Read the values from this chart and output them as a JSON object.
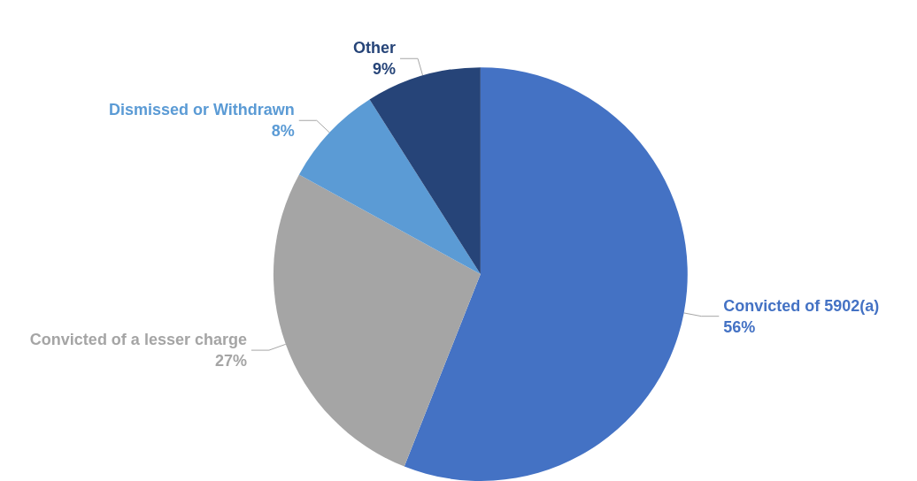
{
  "chart_data": {
    "type": "pie",
    "categories": [
      "Convicted of 5902(a)",
      "Convicted of a lesser charge",
      "Dismissed or Withdrawn",
      "Other"
    ],
    "values": [
      56,
      27,
      8,
      9
    ],
    "colors": [
      "#4472c4",
      "#a5a5a5",
      "#5b9bd5",
      "#264478"
    ],
    "value_labels": [
      "56%",
      "27%",
      "8%",
      "9%"
    ],
    "legend": false
  }
}
